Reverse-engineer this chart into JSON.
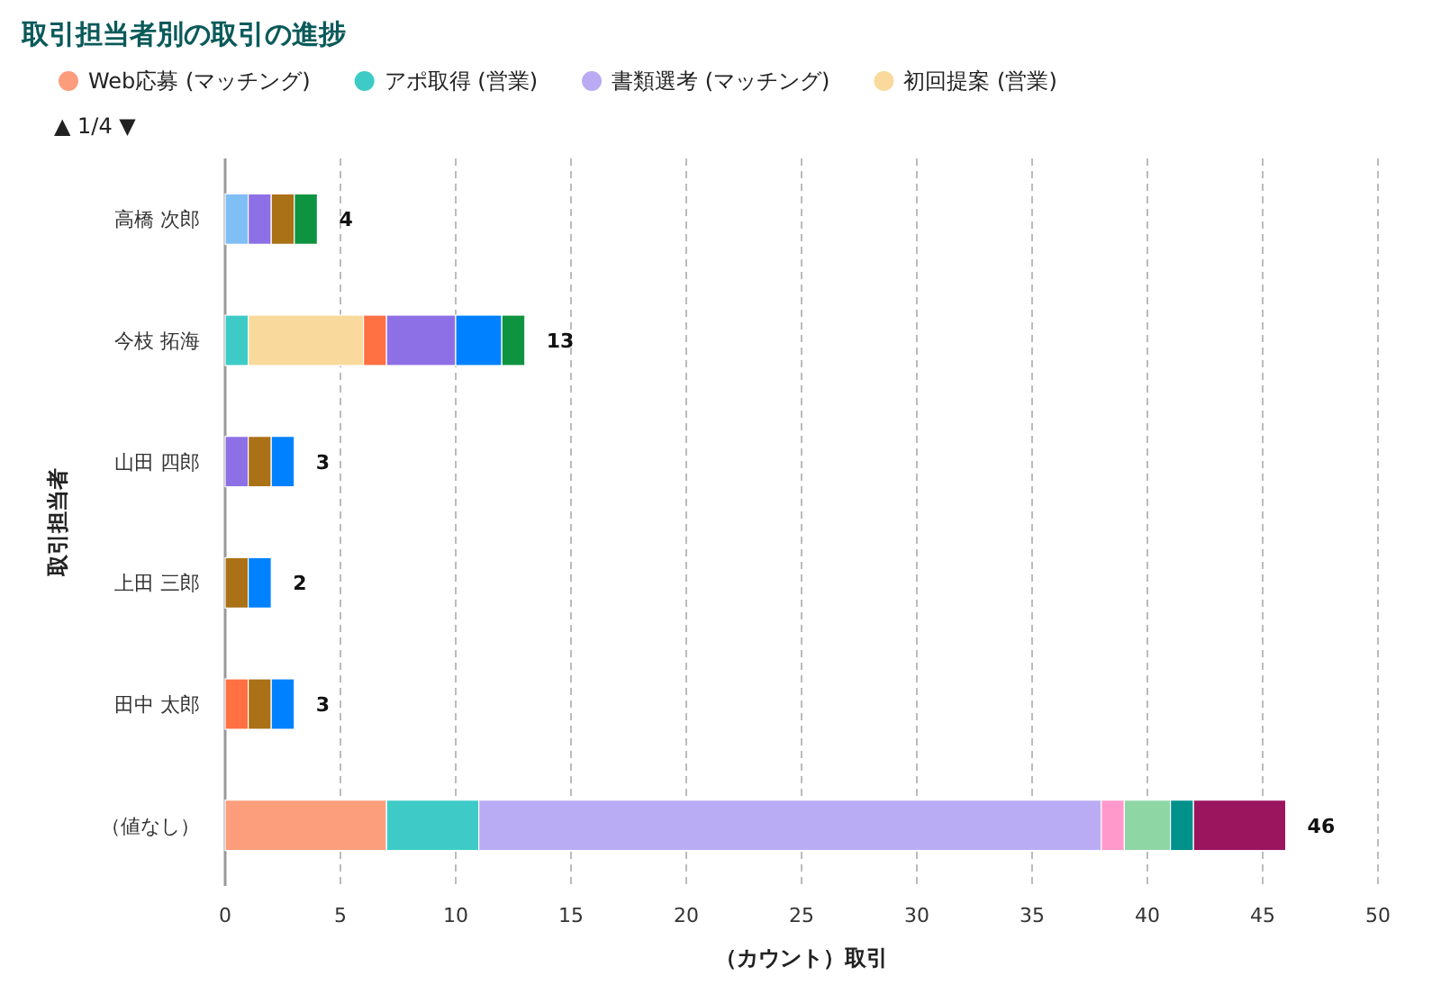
{
  "chart_data": {
    "type": "bar",
    "orientation": "horizontal",
    "stacked": true,
    "title": "取引担当者別の取引の進捗",
    "xlabel": "（カウント）取引",
    "ylabel": "取引担当者",
    "categories": [
      "高橋 次郎",
      "今枝 拓海",
      "山田 四郎",
      "上田 三郎",
      "田中 太郎",
      "（値なし）"
    ],
    "series": [
      {
        "name": "Web応募 (マッチング)",
        "color": "#fc9e7c",
        "values": [
          null,
          null,
          null,
          null,
          null,
          7
        ]
      },
      {
        "name": "アポ取得 (営業)",
        "color": "#3ecbc8",
        "values": [
          null,
          1,
          null,
          null,
          null,
          4
        ]
      },
      {
        "name": "書類選考 (マッチング)",
        "color": "#b9acf5",
        "values": [
          null,
          null,
          null,
          null,
          null,
          27
        ]
      },
      {
        "name": "初回提案 (営業)",
        "color": "#f9da9c",
        "values": [
          null,
          5,
          null,
          null,
          null,
          null
        ]
      },
      {
        "color": "#7fbff5",
        "values": [
          1,
          null,
          null,
          null,
          null,
          null
        ]
      },
      {
        "color": "#ff7043",
        "values": [
          null,
          1,
          null,
          null,
          1,
          null
        ]
      },
      {
        "color": "#8e70e6",
        "values": [
          1,
          3,
          1,
          null,
          null,
          null
        ]
      },
      {
        "color": "#aa7116",
        "values": [
          1,
          null,
          1,
          1,
          1,
          null
        ]
      },
      {
        "color": "#0081ff",
        "values": [
          null,
          2,
          1,
          1,
          1,
          null
        ]
      },
      {
        "color": "#0e9340",
        "values": [
          1,
          1,
          null,
          null,
          null,
          null
        ]
      },
      {
        "color": "#ff99cc",
        "values": [
          null,
          null,
          null,
          null,
          null,
          1
        ]
      },
      {
        "color": "#8ed6a4",
        "values": [
          null,
          null,
          null,
          null,
          null,
          2
        ]
      },
      {
        "color": "#00918b",
        "values": [
          null,
          null,
          null,
          null,
          null,
          1
        ]
      },
      {
        "color": "#9b145e",
        "values": [
          null,
          null,
          null,
          null,
          null,
          4
        ]
      }
    ],
    "totals": [
      "4",
      "13",
      "3",
      "2",
      "3",
      "46"
    ],
    "xlim": [
      0,
      50
    ],
    "xticks": [
      0,
      5,
      10,
      15,
      20,
      25,
      30,
      35,
      40,
      45,
      50
    ],
    "grid": "x",
    "legend": "top",
    "annotations": [
      "▲ 1/4 ▼"
    ]
  }
}
